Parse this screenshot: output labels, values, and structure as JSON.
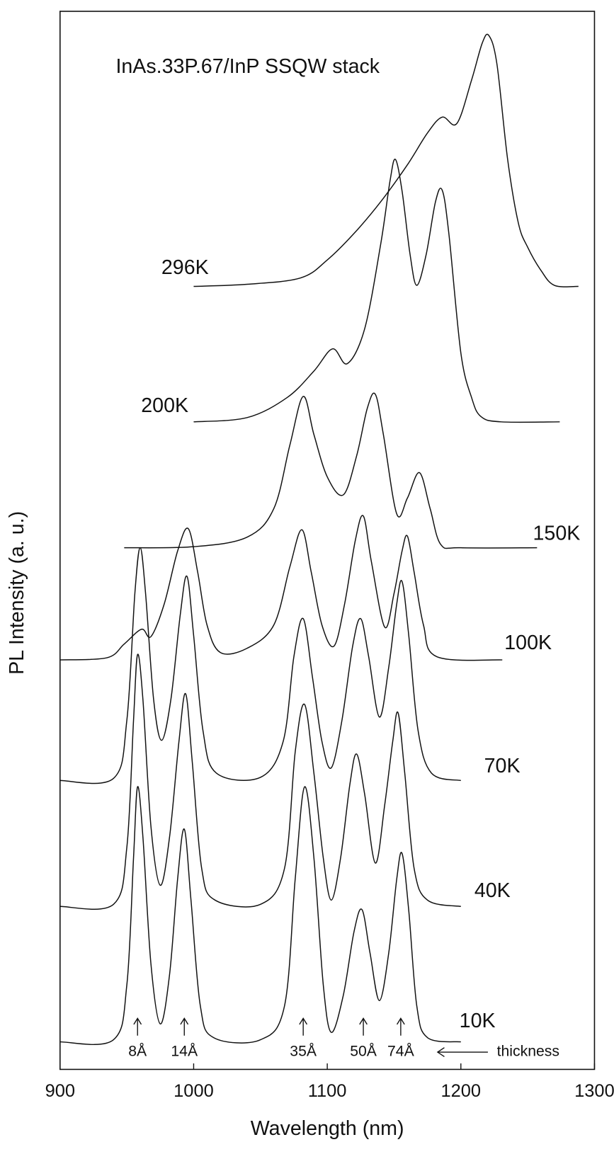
{
  "chart_data": {
    "type": "line",
    "title": "InAs.33P.67/InP  SSQW stack",
    "x_label": "Wavelength (nm)",
    "y_label": "PL Intensity (a. u.)",
    "xlim": [
      900,
      1300
    ],
    "xticks": [
      900,
      1000,
      1100,
      1200,
      1300
    ],
    "ylim": [
      0,
      100
    ],
    "color": "#111111",
    "series": [
      {
        "name": "10K",
        "x": [
          900,
          940,
          950,
          955,
          958,
          962,
          968,
          975,
          982,
          988,
          993,
          998,
          1005,
          1015,
          1050,
          1068,
          1076,
          1083,
          1090,
          1097,
          1103,
          1112,
          1120,
          1126,
          1132,
          1139,
          1146,
          1152,
          1156,
          1161,
          1167,
          1175,
          1200
        ],
        "values": [
          2.6,
          2.8,
          8,
          20,
          26.7,
          22,
          10,
          4.3,
          9,
          18,
          22.7,
          16,
          6,
          3,
          2.8,
          6,
          18,
          26.7,
          20,
          8,
          3.5,
          7,
          13,
          15.1,
          11,
          6.5,
          11,
          18,
          20.4,
          15,
          6,
          3,
          2.6
        ]
      },
      {
        "name": "40K",
        "x": [
          900,
          940,
          950,
          955,
          958,
          962,
          968,
          975,
          982,
          989,
          994,
          999,
          1006,
          1016,
          1050,
          1068,
          1076,
          1083,
          1090,
          1097,
          1103,
          1110,
          1117,
          1122,
          1128,
          1136,
          1143,
          1149,
          1153,
          1158,
          1165,
          1175,
          1200
        ],
        "values": [
          15.4,
          15.6,
          21,
          33,
          39.2,
          35,
          23,
          17.4,
          22,
          31,
          35.5,
          29,
          19,
          16,
          15.6,
          19,
          30,
          34.5,
          28,
          20,
          16,
          20,
          27,
          29.8,
          26,
          19.5,
          25,
          31,
          33.7,
          28,
          19,
          16,
          15.4
        ]
      },
      {
        "name": "70K",
        "x": [
          900,
          940,
          950,
          956,
          960,
          964,
          970,
          976,
          983,
          990,
          995,
          1000,
          1007,
          1017,
          1050,
          1067,
          1075,
          1082,
          1089,
          1096,
          1103,
          1111,
          1119,
          1125,
          1131,
          1139,
          1146,
          1152,
          1156,
          1161,
          1168,
          1178,
          1200
        ],
        "values": [
          27.3,
          27.5,
          33,
          45,
          49.3,
          45,
          35,
          31.1,
          35,
          43,
          46.6,
          41,
          32,
          28,
          27.6,
          31,
          39,
          42.6,
          37,
          31,
          28.5,
          33,
          40,
          42.6,
          39,
          33.3,
          38,
          44,
          46.1,
          41,
          32,
          28,
          27.3
        ]
      },
      {
        "name": "100K",
        "x": [
          900,
          935,
          948,
          961,
          968,
          978,
          988,
          996,
          1003,
          1010,
          1020,
          1040,
          1060,
          1072,
          1081,
          1088,
          1096,
          1105,
          1113,
          1121,
          1127,
          1133,
          1143,
          1150,
          1156,
          1160,
          1165,
          1172,
          1182,
          1231
        ],
        "values": [
          38.7,
          38.9,
          40.2,
          41.6,
          40.9,
          44,
          49,
          51.1,
          47,
          42,
          39.4,
          39.8,
          42,
          47.5,
          51,
          47,
          42,
          40,
          44,
          50,
          52.3,
          48,
          41.8,
          45,
          49,
          50.4,
          47,
          42,
          39,
          38.7
        ]
      },
      {
        "name": "150K",
        "x": [
          948,
          1000,
          1040,
          1060,
          1072,
          1082,
          1090,
          1100,
          1112,
          1122,
          1130,
          1136,
          1142,
          1152,
          1160,
          1169,
          1177,
          1185,
          1200,
          1257
        ],
        "values": [
          49.3,
          49.4,
          50.3,
          53,
          59,
          63.6,
          60,
          56,
          54.3,
          58,
          62.5,
          63.8,
          60,
          52.5,
          54,
          56.4,
          53,
          49.6,
          49.3,
          49.3
        ]
      },
      {
        "name": "200K",
        "x": [
          1000,
          1040,
          1070,
          1090,
          1104,
          1115,
          1128,
          1140,
          1147,
          1151,
          1156,
          1162,
          1167,
          1174,
          1181,
          1186,
          1191,
          1200,
          1208,
          1215,
          1230,
          1274
        ],
        "values": [
          61.2,
          61.6,
          63.5,
          66,
          68.1,
          66.7,
          70,
          78,
          84,
          86,
          83,
          77,
          74.1,
          77,
          82,
          83.1,
          79,
          67.7,
          63.5,
          61.7,
          61.2,
          61.2
        ]
      },
      {
        "name": "296K",
        "x": [
          1000,
          1040,
          1080,
          1100,
          1120,
          1140,
          1160,
          1175,
          1186,
          1197,
          1208,
          1216,
          1221,
          1227,
          1235,
          1243,
          1250,
          1260,
          1270,
          1288
        ],
        "values": [
          74,
          74.2,
          74.8,
          76.5,
          79,
          82,
          85.5,
          88.5,
          90,
          89.4,
          93.5,
          97,
          97.7,
          95,
          86,
          80,
          77.7,
          75.5,
          74.1,
          74
        ]
      }
    ],
    "annotations": [
      {
        "text": "8Å",
        "x": 958
      },
      {
        "text": "14Å",
        "x": 993
      },
      {
        "text": "35Å",
        "x": 1082
      },
      {
        "text": "50Å",
        "x": 1127
      },
      {
        "text": "74Å",
        "x": 1155
      }
    ],
    "arrow_note": "thickness"
  }
}
